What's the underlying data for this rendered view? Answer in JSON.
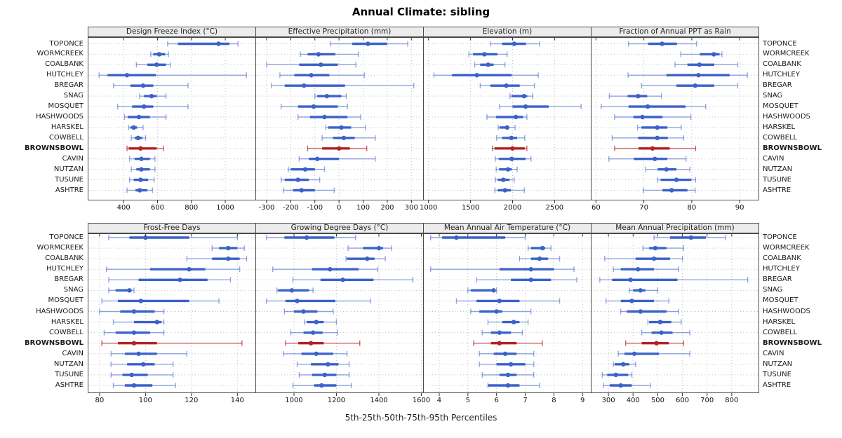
{
  "title": "Annual Climate: sibling",
  "caption": "5th-25th-50th-75th-95th Percentiles",
  "colors": {
    "series": "#3a62c8",
    "series_light": "rgba(58,98,200,0.55)",
    "highlight": "#b22222",
    "highlight_light": "rgba(178,34,34,0.7)",
    "strip_bg": "#ececec",
    "grid": "#c3c3c3",
    "frame": "#4a4a4a",
    "tick": "#333333"
  },
  "chart_data": {
    "type": "dotplot-percentiles",
    "percentiles": [
      5,
      25,
      50,
      75,
      95
    ],
    "layout": {
      "rows": 2,
      "cols": 4
    },
    "highlight_site": "BROWNSBOWL",
    "sites": [
      "TOPONCE",
      "WORMCREEK",
      "COALBANK",
      "HUTCHLEY",
      "BREGAR",
      "SNAG",
      "MOSQUET",
      "HASHWOODS",
      "HARSKEL",
      "COWBELL",
      "BROWNSBOWL",
      "CAVIN",
      "NUTZAN",
      "TUSUNE",
      "ASHTRE"
    ],
    "panels": [
      {
        "title": "Design Freeze Index (°C)",
        "xlim": [
          190,
          1180
        ],
        "ticks": [
          400,
          600,
          800,
          1000
        ],
        "values": [
          [
            660,
            720,
            960,
            1025,
            1075
          ],
          [
            560,
            575,
            610,
            645,
            665
          ],
          [
            475,
            540,
            595,
            650,
            675
          ],
          [
            255,
            305,
            420,
            590,
            1125
          ],
          [
            340,
            440,
            515,
            575,
            780
          ],
          [
            495,
            520,
            565,
            595,
            650
          ],
          [
            365,
            450,
            520,
            575,
            780
          ],
          [
            405,
            425,
            490,
            555,
            650
          ],
          [
            430,
            440,
            460,
            480,
            515
          ],
          [
            445,
            465,
            485,
            510,
            530
          ],
          [
            420,
            430,
            500,
            595,
            635
          ],
          [
            435,
            465,
            505,
            555,
            585
          ],
          [
            445,
            475,
            505,
            555,
            585
          ],
          [
            435,
            460,
            500,
            545,
            580
          ],
          [
            420,
            470,
            495,
            540,
            570
          ]
        ]
      },
      {
        "title": "Effective Precipitation (mm)",
        "xlim": [
          -345,
          350
        ],
        "ticks": [
          -300,
          -200,
          -100,
          0,
          100,
          200,
          300
        ],
        "values": [
          [
            -35,
            55,
            120,
            200,
            285
          ],
          [
            -160,
            -130,
            -85,
            -15,
            80
          ],
          [
            -300,
            -165,
            -75,
            -5,
            70
          ],
          [
            -245,
            -185,
            -115,
            -40,
            105
          ],
          [
            -280,
            -225,
            -145,
            25,
            310
          ],
          [
            -100,
            -90,
            -50,
            10,
            30
          ],
          [
            -240,
            -170,
            -105,
            -5,
            35
          ],
          [
            -170,
            -120,
            -60,
            35,
            90
          ],
          [
            -55,
            -45,
            10,
            50,
            110
          ],
          [
            -70,
            -25,
            20,
            65,
            150
          ],
          [
            -130,
            -70,
            0,
            45,
            115
          ],
          [
            -165,
            -125,
            -90,
            0,
            150
          ],
          [
            -210,
            -200,
            -140,
            -100,
            -60
          ],
          [
            -240,
            -225,
            -170,
            -125,
            -80
          ],
          [
            -230,
            -190,
            -155,
            -100,
            -20
          ]
        ]
      },
      {
        "title": "Elevation (m)",
        "xlim": [
          940,
          2935
        ],
        "ticks": [
          1000,
          1500,
          2000,
          2500
        ],
        "values": [
          [
            1735,
            1875,
            2020,
            2160,
            2320
          ],
          [
            1480,
            1530,
            1665,
            1820,
            1935
          ],
          [
            1550,
            1615,
            1710,
            1775,
            1910
          ],
          [
            1065,
            1280,
            1575,
            1990,
            2305
          ],
          [
            1615,
            1735,
            1925,
            2085,
            2260
          ],
          [
            1970,
            1990,
            2135,
            2175,
            2240
          ],
          [
            1845,
            2000,
            2155,
            2430,
            2815
          ],
          [
            1695,
            1805,
            2040,
            2125,
            2170
          ],
          [
            1830,
            1845,
            1935,
            1960,
            2030
          ],
          [
            1810,
            1875,
            1985,
            2055,
            2145
          ],
          [
            1760,
            1785,
            2000,
            2145,
            2170
          ],
          [
            1795,
            1835,
            1990,
            2155,
            2220
          ],
          [
            1805,
            1840,
            1945,
            1990,
            2055
          ],
          [
            1795,
            1825,
            1890,
            1965,
            2020
          ],
          [
            1790,
            1825,
            1910,
            1980,
            2140
          ]
        ]
      },
      {
        "title": "Fraction of Annual PPT as Rain",
        "xlim": [
          59,
          94
        ],
        "ticks": [
          60,
          70,
          80,
          90
        ],
        "values": [
          [
            66.8,
            70.9,
            73.8,
            76.9,
            81.0
          ],
          [
            77.7,
            81.7,
            84.6,
            85.8,
            86.3
          ],
          [
            76.5,
            79.1,
            81.6,
            84.7,
            89.6
          ],
          [
            66.7,
            74.7,
            81.4,
            87.9,
            91.6
          ],
          [
            69.5,
            76.8,
            80.7,
            84.7,
            89.6
          ],
          [
            62.8,
            66.6,
            68.8,
            70.7,
            73.7
          ],
          [
            61.1,
            66.8,
            70.8,
            78.7,
            82.9
          ],
          [
            63.9,
            67.8,
            69.7,
            73.9,
            79.8
          ],
          [
            68.7,
            69.5,
            72.8,
            74.9,
            77.8
          ],
          [
            63.4,
            68.8,
            72.8,
            75.0,
            78.3
          ],
          [
            63.9,
            68.9,
            71.8,
            75.4,
            80.8
          ],
          [
            62.7,
            67.9,
            72.3,
            74.9,
            78.8
          ],
          [
            70.4,
            72.9,
            74.7,
            76.8,
            79.6
          ],
          [
            72.9,
            73.5,
            76.8,
            79.9,
            80.8
          ],
          [
            69.9,
            73.9,
            75.8,
            79.1,
            80.7
          ]
        ]
      },
      {
        "title": "Frost-Free Days",
        "xlim": [
          75,
          148
        ],
        "ticks": [
          80,
          100,
          120,
          140
        ],
        "values": [
          [
            84,
            93,
            100,
            119,
            140
          ],
          [
            129,
            132,
            136,
            140,
            143
          ],
          [
            118,
            129,
            136,
            141,
            144
          ],
          [
            83,
            102,
            119,
            126,
            141
          ],
          [
            84,
            97,
            115,
            127,
            137
          ],
          [
            84,
            87,
            93,
            94,
            95
          ],
          [
            81,
            88,
            98,
            119,
            132
          ],
          [
            80,
            89,
            95,
            104,
            108
          ],
          [
            86,
            95,
            105,
            107,
            108
          ],
          [
            82,
            87,
            95,
            102,
            108
          ],
          [
            81,
            88,
            95,
            105,
            142
          ],
          [
            85,
            91,
            97,
            105,
            118
          ],
          [
            85,
            92,
            99,
            104,
            112
          ],
          [
            85,
            90,
            94,
            101,
            112
          ],
          [
            86,
            91,
            95,
            103,
            113
          ]
        ]
      },
      {
        "title": "Growing Degree Days (°C)",
        "xlim": [
          820,
          1610
        ],
        "ticks": [
          1000,
          1200,
          1400,
          1600
        ],
        "values": [
          [
            870,
            955,
            1060,
            1190,
            1290
          ],
          [
            1255,
            1325,
            1400,
            1420,
            1460
          ],
          [
            1245,
            1250,
            1345,
            1380,
            1430
          ],
          [
            900,
            1085,
            1170,
            1305,
            1395
          ],
          [
            995,
            1125,
            1230,
            1375,
            1560
          ],
          [
            920,
            925,
            990,
            1070,
            1090
          ],
          [
            870,
            960,
            1015,
            1195,
            1360
          ],
          [
            955,
            1000,
            1045,
            1110,
            1185
          ],
          [
            1050,
            1060,
            1105,
            1140,
            1200
          ],
          [
            985,
            1045,
            1090,
            1135,
            1205
          ],
          [
            960,
            1020,
            1080,
            1140,
            1310
          ],
          [
            950,
            1035,
            1105,
            1185,
            1250
          ],
          [
            1015,
            1080,
            1160,
            1210,
            1260
          ],
          [
            1025,
            1085,
            1145,
            1200,
            1260
          ],
          [
            995,
            1095,
            1130,
            1200,
            1270
          ]
        ]
      },
      {
        "title": "Mean Annual Air Temperature (°C)",
        "xlim": [
          3.45,
          9.3
        ],
        "ticks": [
          4,
          5,
          6,
          7,
          8,
          9
        ],
        "values": [
          [
            3.7,
            4.1,
            4.6,
            6.3,
            7.0
          ],
          [
            7.1,
            7.2,
            7.6,
            7.7,
            7.9
          ],
          [
            6.8,
            7.2,
            7.5,
            7.8,
            8.2
          ],
          [
            3.7,
            6.1,
            7.2,
            8.0,
            8.7
          ],
          [
            5.3,
            6.5,
            7.2,
            7.9,
            8.8
          ],
          [
            5.0,
            5.1,
            5.9,
            5.95,
            6.0
          ],
          [
            4.6,
            5.3,
            6.1,
            6.8,
            8.2
          ],
          [
            5.1,
            5.4,
            6.0,
            6.2,
            7.2
          ],
          [
            5.7,
            6.2,
            6.6,
            6.8,
            7.1
          ],
          [
            5.5,
            5.8,
            6.1,
            6.5,
            6.9
          ],
          [
            5.2,
            5.8,
            6.1,
            6.7,
            7.6
          ],
          [
            5.4,
            5.9,
            6.3,
            6.7,
            7.3
          ],
          [
            5.4,
            6.0,
            6.5,
            7.0,
            7.3
          ],
          [
            5.5,
            6.1,
            6.4,
            6.7,
            7.3
          ],
          [
            5.7,
            5.7,
            6.4,
            6.8,
            7.5
          ]
        ]
      },
      {
        "title": "Mean Annual Precipitation (mm)",
        "xlim": [
          230,
          910
        ],
        "ticks": [
          300,
          400,
          500,
          600,
          700,
          800
        ],
        "values": [
          [
            485,
            550,
            635,
            695,
            775
          ],
          [
            440,
            465,
            490,
            535,
            605
          ],
          [
            285,
            410,
            485,
            550,
            600
          ],
          [
            320,
            350,
            420,
            485,
            585
          ],
          [
            265,
            315,
            390,
            580,
            865
          ],
          [
            385,
            400,
            430,
            450,
            500
          ],
          [
            290,
            350,
            395,
            485,
            545
          ],
          [
            350,
            375,
            430,
            535,
            585
          ],
          [
            460,
            465,
            510,
            555,
            595
          ],
          [
            435,
            475,
            515,
            560,
            630
          ],
          [
            370,
            435,
            495,
            545,
            605
          ],
          [
            340,
            365,
            405,
            505,
            630
          ],
          [
            320,
            325,
            360,
            385,
            410
          ],
          [
            275,
            295,
            330,
            380,
            395
          ],
          [
            280,
            305,
            350,
            395,
            470
          ]
        ]
      }
    ]
  }
}
